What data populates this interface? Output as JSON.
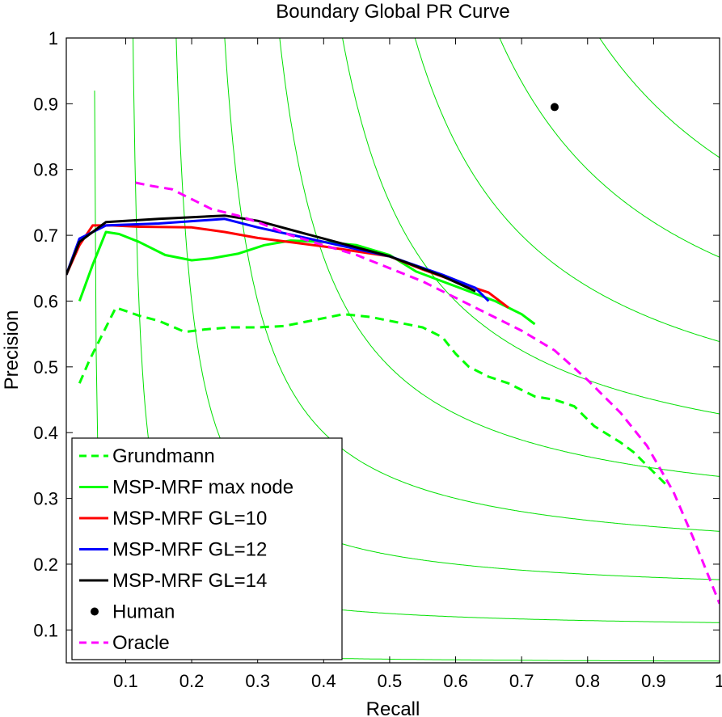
{
  "chart_data": {
    "type": "line",
    "title": "Boundary Global PR Curve",
    "xlabel": "Recall",
    "ylabel": "Precision",
    "xlim": [
      0.01,
      1.0
    ],
    "ylim": [
      0.05,
      1.0
    ],
    "xticks": [
      0.1,
      0.2,
      0.3,
      0.4,
      0.5,
      0.6,
      0.7,
      0.8,
      0.9,
      1
    ],
    "xtick_labels": [
      "0.1",
      "0.2",
      "0.3",
      "0.4",
      "0.5",
      "0.6",
      "0.7",
      "0.8",
      "0.9",
      "1"
    ],
    "yticks": [
      0.1,
      0.2,
      0.3,
      0.4,
      0.5,
      0.6,
      0.7,
      0.8,
      0.9,
      1
    ],
    "ytick_labels": [
      "0.1",
      "0.2",
      "0.3",
      "0.4",
      "0.5",
      "0.6",
      "0.7",
      "0.8",
      "0.9",
      "1"
    ],
    "legend_position": "bottom-left",
    "iso_f_curves": {
      "color": "#00e000",
      "f_values": [
        0.1,
        0.2,
        0.3,
        0.4,
        0.5,
        0.6,
        0.7,
        0.8,
        0.9
      ]
    },
    "series": [
      {
        "name": "Grundmann",
        "color": "#00ff00",
        "style": "dashed",
        "x": [
          0.03,
          0.045,
          0.06,
          0.085,
          0.1,
          0.12,
          0.15,
          0.19,
          0.22,
          0.26,
          0.3,
          0.34,
          0.38,
          0.43,
          0.47,
          0.51,
          0.55,
          0.58,
          0.6,
          0.62,
          0.65,
          0.68,
          0.72,
          0.75,
          0.78,
          0.81,
          0.85,
          0.87,
          0.89,
          0.92
        ],
        "y": [
          0.475,
          0.51,
          0.54,
          0.59,
          0.585,
          0.578,
          0.57,
          0.553,
          0.557,
          0.56,
          0.56,
          0.562,
          0.57,
          0.58,
          0.576,
          0.568,
          0.56,
          0.545,
          0.52,
          0.5,
          0.485,
          0.475,
          0.455,
          0.45,
          0.44,
          0.41,
          0.385,
          0.37,
          0.35,
          0.32
        ]
      },
      {
        "name": "MSP-MRF max node",
        "color": "#00ff00",
        "style": "solid",
        "x": [
          0.03,
          0.05,
          0.07,
          0.09,
          0.12,
          0.16,
          0.2,
          0.23,
          0.27,
          0.31,
          0.35,
          0.4,
          0.45,
          0.5,
          0.54,
          0.58,
          0.62,
          0.66,
          0.7,
          0.72
        ],
        "y": [
          0.6,
          0.655,
          0.705,
          0.702,
          0.69,
          0.67,
          0.662,
          0.665,
          0.672,
          0.685,
          0.692,
          0.69,
          0.685,
          0.67,
          0.645,
          0.63,
          0.615,
          0.6,
          0.58,
          0.565
        ]
      },
      {
        "name": "MSP-MRF GL=10",
        "color": "#ff0000",
        "style": "solid",
        "x": [
          0.01,
          0.03,
          0.05,
          0.08,
          0.12,
          0.2,
          0.25,
          0.3,
          0.4,
          0.5,
          0.55,
          0.6,
          0.65,
          0.68
        ],
        "y": [
          0.64,
          0.685,
          0.715,
          0.715,
          0.713,
          0.712,
          0.705,
          0.696,
          0.683,
          0.668,
          0.648,
          0.63,
          0.613,
          0.59
        ]
      },
      {
        "name": "MSP-MRF GL=12",
        "color": "#0000ff",
        "style": "solid",
        "x": [
          0.01,
          0.03,
          0.07,
          0.15,
          0.25,
          0.3,
          0.4,
          0.5,
          0.58,
          0.63,
          0.65
        ],
        "y": [
          0.64,
          0.695,
          0.715,
          0.718,
          0.725,
          0.712,
          0.69,
          0.668,
          0.64,
          0.62,
          0.6
        ]
      },
      {
        "name": "MSP-MRF GL=14",
        "color": "#000000",
        "style": "solid",
        "x": [
          0.01,
          0.03,
          0.07,
          0.15,
          0.25,
          0.3,
          0.4,
          0.5,
          0.58,
          0.63
        ],
        "y": [
          0.64,
          0.69,
          0.72,
          0.725,
          0.73,
          0.722,
          0.695,
          0.668,
          0.638,
          0.615
        ]
      },
      {
        "name": "Human",
        "color": "#000000",
        "style": "point",
        "x": [
          0.75
        ],
        "y": [
          0.895
        ]
      },
      {
        "name": "Oracle",
        "color": "#ff00ff",
        "style": "dashed",
        "x": [
          0.115,
          0.14,
          0.17,
          0.2,
          0.23,
          0.27,
          0.3,
          0.35,
          0.4,
          0.45,
          0.5,
          0.55,
          0.6,
          0.65,
          0.7,
          0.75,
          0.8,
          0.85,
          0.89,
          0.93,
          0.96,
          0.98,
          1.0
        ],
        "y": [
          0.78,
          0.775,
          0.77,
          0.755,
          0.74,
          0.73,
          0.72,
          0.7,
          0.685,
          0.67,
          0.65,
          0.63,
          0.605,
          0.58,
          0.555,
          0.525,
          0.48,
          0.43,
          0.38,
          0.31,
          0.24,
          0.19,
          0.14
        ]
      }
    ]
  }
}
